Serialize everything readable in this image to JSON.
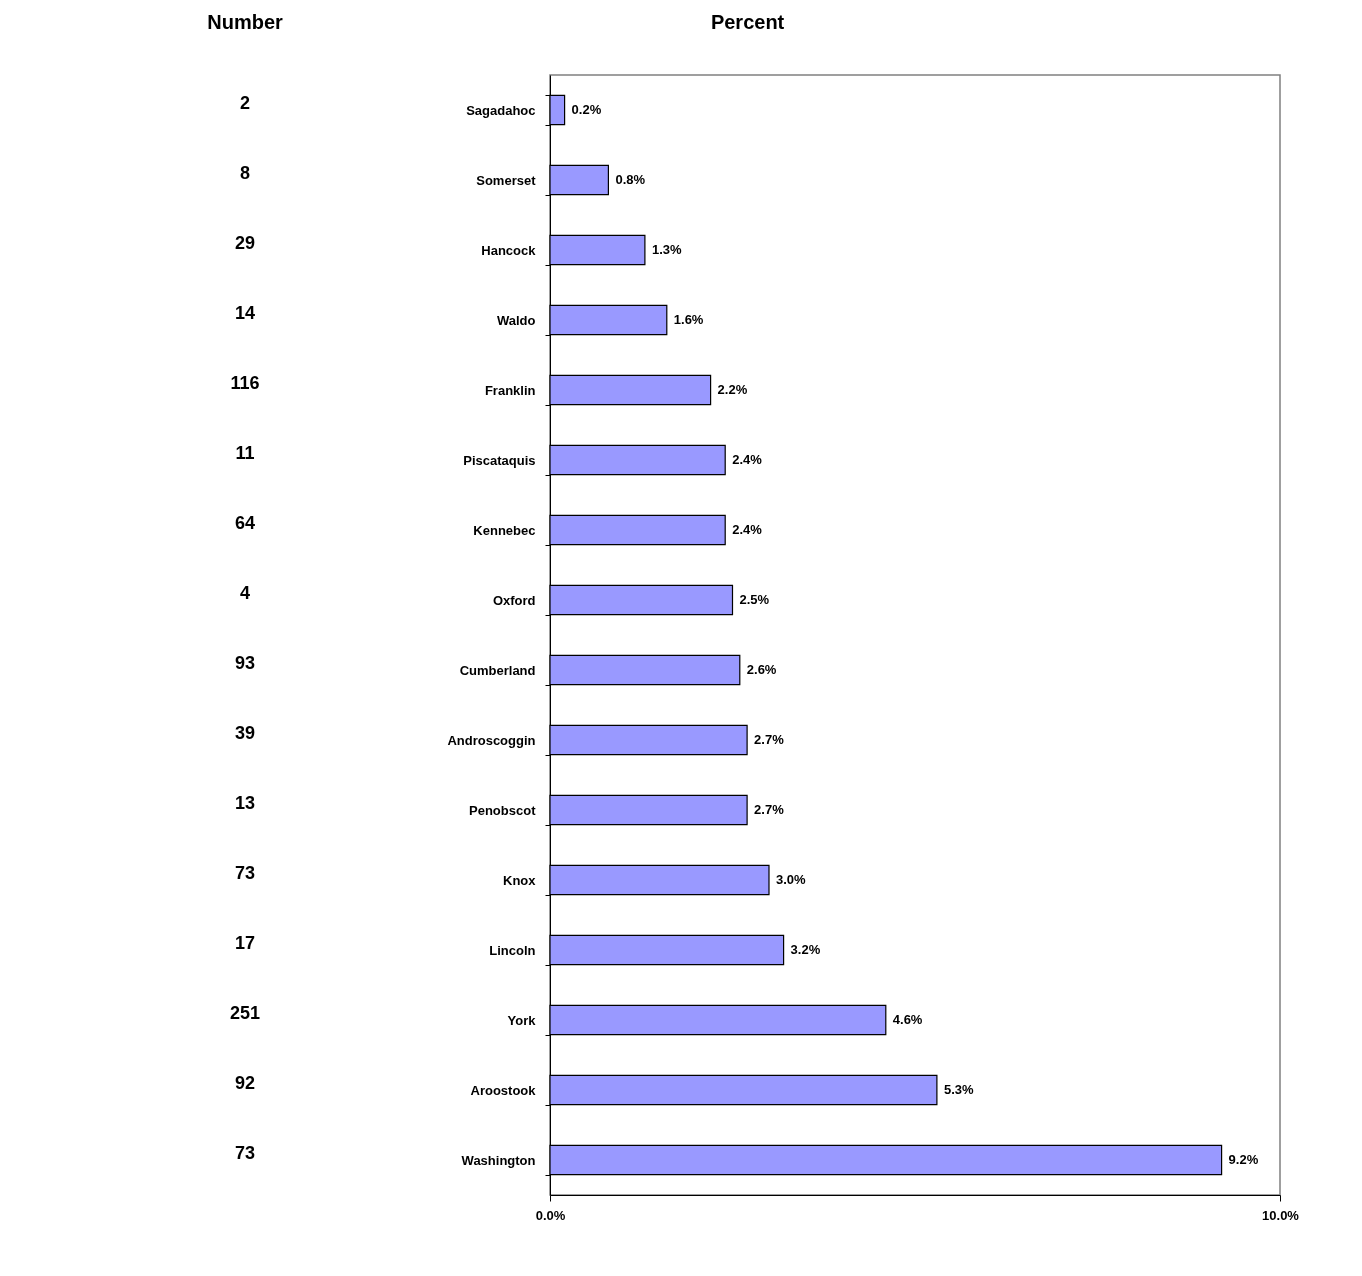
{
  "chart_data": [
    {
      "type": "other",
      "title": "Number",
      "data_labels": true,
      "values": [
        2,
        8,
        29,
        14,
        116,
        11,
        64,
        4,
        93,
        39,
        13,
        73,
        17,
        251,
        92,
        73
      ]
    },
    {
      "type": "bar",
      "title": "Percent",
      "orientation": "horizontal",
      "categories": [
        "Sagadahoc",
        "Somerset",
        "Hancock",
        "Waldo",
        "Franklin",
        "Piscataquis",
        "Kennebec",
        "Oxford",
        "Cumberland",
        "Androscoggin",
        "Penobscot",
        "Knox",
        "Lincoln",
        "York",
        "Aroostook",
        "Washington"
      ],
      "values": [
        0.2,
        0.8,
        1.3,
        1.6,
        2.2,
        2.4,
        2.4,
        2.5,
        2.6,
        2.7,
        2.7,
        3.0,
        3.2,
        4.6,
        5.3,
        9.2
      ],
      "value_labels": [
        "0.2%",
        "0.8%",
        "1.3%",
        "1.6%",
        "2.2%",
        "2.4%",
        "2.4%",
        "2.5%",
        "2.6%",
        "2.7%",
        "2.7%",
        "3.0%",
        "3.2%",
        "4.6%",
        "5.3%",
        "9.2%"
      ],
      "color": "#9999ff",
      "xlim": [
        0,
        10
      ],
      "xticks": [
        {
          "value": 0,
          "label": "0.0%"
        },
        {
          "value": 10,
          "label": "10.0%"
        }
      ]
    }
  ]
}
